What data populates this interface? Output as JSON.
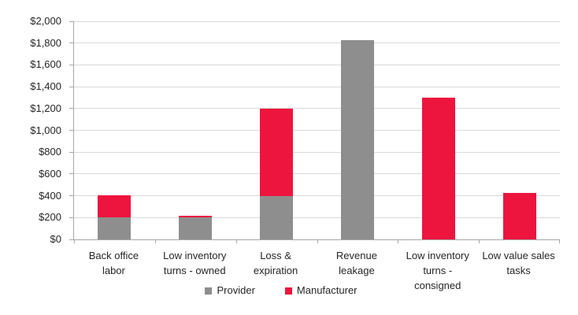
{
  "chart_data": {
    "type": "bar",
    "stacked": true,
    "title": "",
    "xlabel": "",
    "ylabel": "",
    "grid": true,
    "legend_position": "bottom",
    "categories": [
      "Back office labor",
      "Low inventory turns - owned",
      "Loss & expiration",
      "Revenue leakage",
      "Low inventory turns - consigned",
      "Low value sales tasks"
    ],
    "category_lines": [
      [
        "Back office",
        "labor"
      ],
      [
        "Low inventory",
        "turns - owned"
      ],
      [
        "Loss &",
        "expiration"
      ],
      [
        "Revenue",
        "leakage"
      ],
      [
        "Low inventory",
        "turns -",
        "consigned"
      ],
      [
        "Low value sales",
        "tasks"
      ]
    ],
    "series": [
      {
        "name": "Provider",
        "color": "#8E8E8E",
        "values": [
          200,
          200,
          400,
          1830,
          0,
          0
        ]
      },
      {
        "name": "Manufacturer",
        "color": "#ED143E",
        "values": [
          200,
          10,
          800,
          0,
          1300,
          425
        ]
      }
    ],
    "yaxis": {
      "min": 0,
      "max": 2000,
      "step": 200,
      "tick_labels": [
        "$0",
        "$200",
        "$400",
        "$600",
        "$800",
        "$1,000",
        "$1,200",
        "$1,400",
        "$1,600",
        "$1,800",
        "$2,000"
      ]
    },
    "legend_items": [
      "Provider",
      "Manufacturer"
    ],
    "colors": {
      "provider": "#8E8E8E",
      "manufacturer": "#ED143E",
      "gridline": "#D9D9D9",
      "axis": "#A6A6A6",
      "text": "#262626"
    }
  }
}
